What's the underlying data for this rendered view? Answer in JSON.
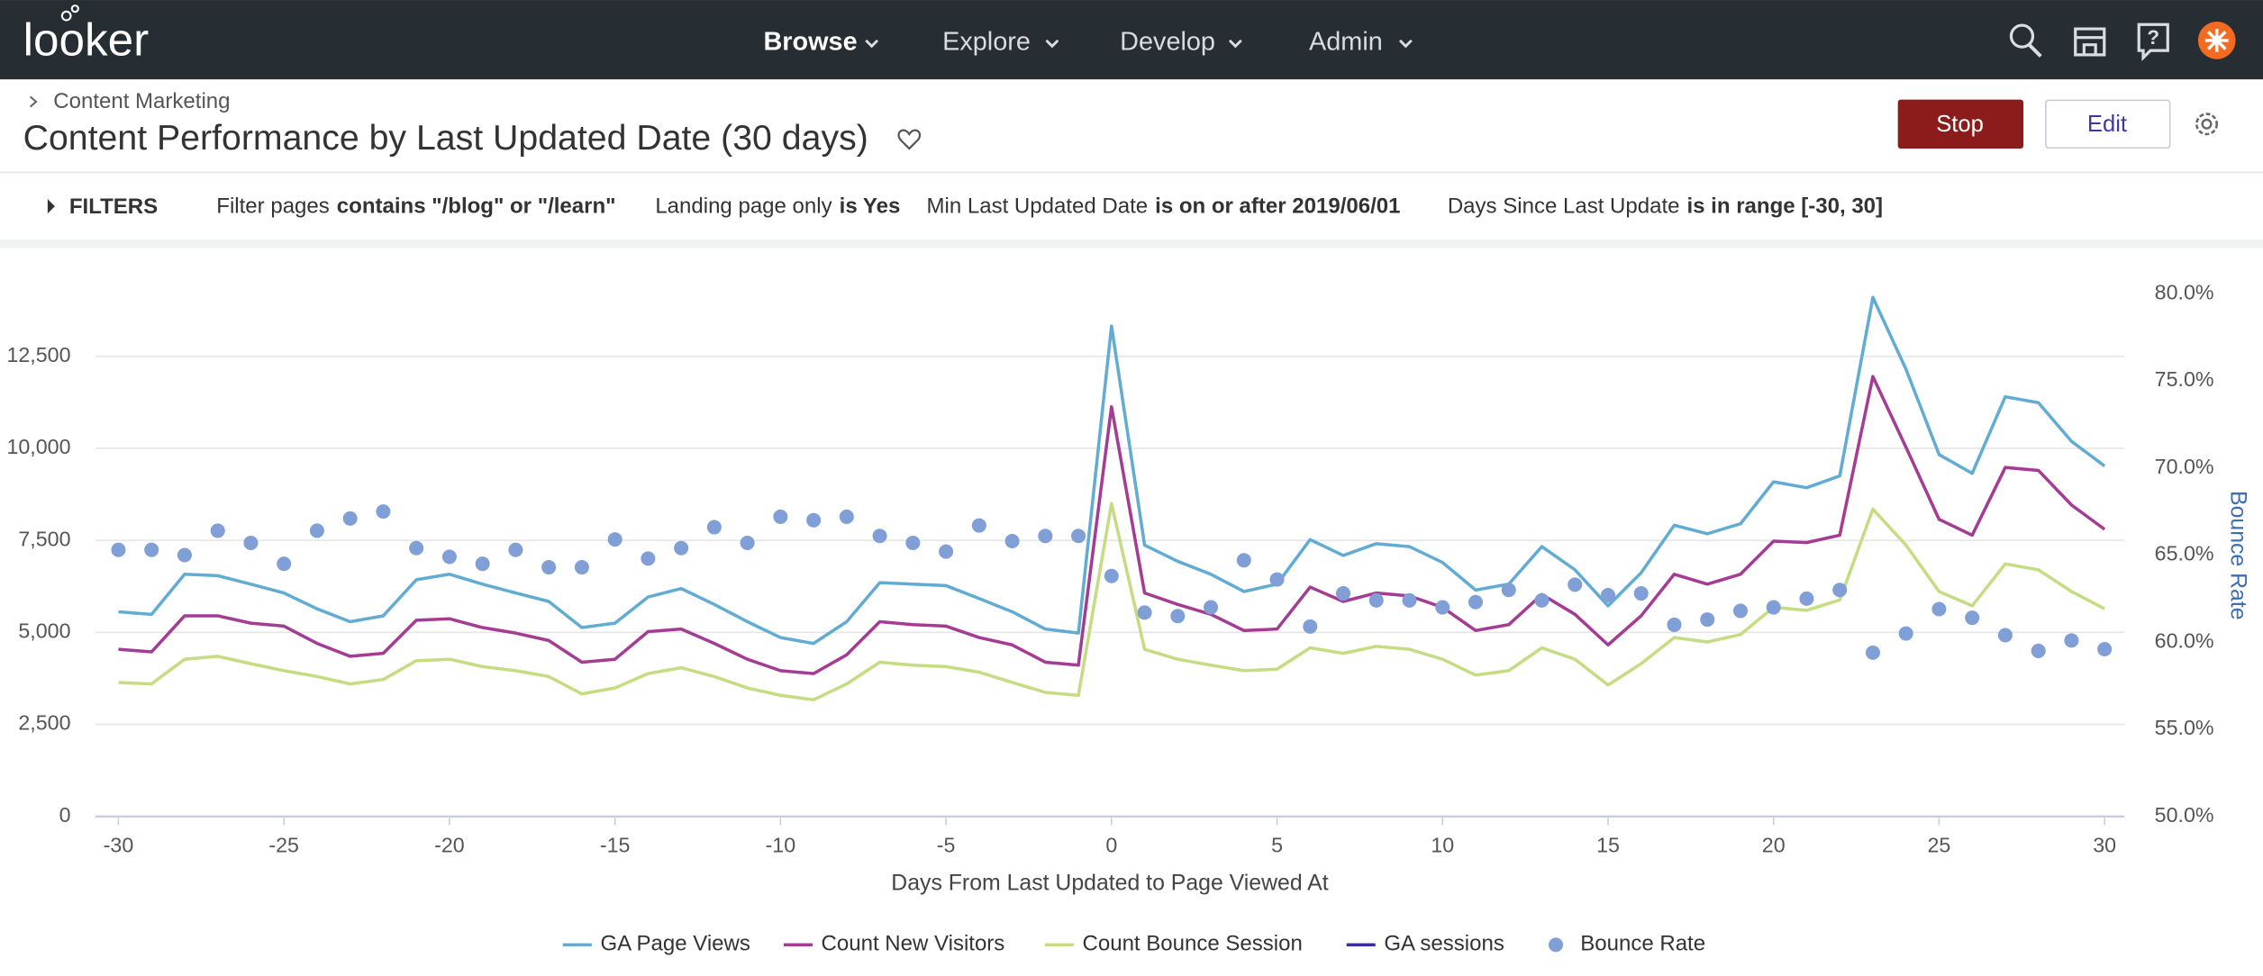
{
  "header": {
    "logo": "looker",
    "nav": [
      "Browse",
      "Explore",
      "Develop",
      "Admin"
    ]
  },
  "breadcrumb": "Content Marketing",
  "title": "Content Performance by Last Updated Date (30 days)",
  "buttons": {
    "stop": "Stop",
    "edit": "Edit"
  },
  "filters": {
    "label": "FILTERS",
    "items": [
      {
        "field": "Filter pages",
        "condition": "contains \"/blog\" or \"/learn\""
      },
      {
        "field": "Landing page only",
        "condition": "is Yes"
      },
      {
        "field": "Min Last Updated Date",
        "condition": "is on or after 2019/06/01"
      },
      {
        "field": "Days Since Last Update",
        "condition": "is in range [-30, 30]"
      }
    ]
  },
  "chart_data": {
    "type": "line",
    "x_label": "Days From Last Updated to Page Viewed At",
    "y2_label": "Bounce Rate",
    "x": [
      -30,
      -29,
      -28,
      -27,
      -26,
      -25,
      -24,
      -23,
      -22,
      -21,
      -20,
      -19,
      -18,
      -17,
      -16,
      -15,
      -14,
      -13,
      -12,
      -11,
      -10,
      -9,
      -8,
      -7,
      -6,
      -5,
      -4,
      -3,
      -2,
      -1,
      0,
      1,
      2,
      3,
      4,
      5,
      6,
      7,
      8,
      9,
      10,
      11,
      12,
      13,
      14,
      15,
      16,
      17,
      18,
      19,
      20,
      21,
      22,
      23,
      24,
      25,
      26,
      27,
      28,
      29,
      30
    ],
    "xlim": [
      -30.7,
      30.6
    ],
    "xticks": [
      -30,
      -25,
      -20,
      -15,
      -10,
      -5,
      0,
      5,
      10,
      15,
      20,
      25,
      30
    ],
    "ylim": [
      0,
      14200
    ],
    "yticks": [
      0,
      {
        "value": 2500,
        "label": "2,500"
      },
      {
        "value": 5000,
        "label": "5,000"
      },
      {
        "value": 7500,
        "label": "7,500"
      },
      {
        "value": 10000,
        "label": "10,000"
      },
      {
        "value": 12500,
        "label": "12,500"
      }
    ],
    "y2lim": [
      50,
      80
    ],
    "y2ticks": [
      {
        "value": 50,
        "label": "50.0%"
      },
      {
        "value": 55,
        "label": "55.0%"
      },
      {
        "value": 60,
        "label": "60.0%"
      },
      {
        "value": 65,
        "label": "65.0%"
      },
      {
        "value": 70,
        "label": "70.0%"
      },
      {
        "value": 75,
        "label": "75.0%"
      },
      {
        "value": 80,
        "label": "80.0%"
      }
    ],
    "grid": true,
    "legend": "bottom",
    "series": [
      {
        "name": "GA Page Views",
        "color": "#62acd3",
        "values": [
          5560,
          5490,
          6580,
          6540,
          6310,
          6070,
          5640,
          5290,
          5450,
          6430,
          6580,
          6310,
          6070,
          5840,
          5130,
          5250,
          5960,
          6190,
          5760,
          5290,
          4860,
          4700,
          5290,
          6350,
          6310,
          6270,
          5920,
          5560,
          5090,
          4980,
          13320,
          7370,
          6930,
          6580,
          6110,
          6310,
          7520,
          7090,
          7410,
          7330,
          6900,
          6150,
          6310,
          7330,
          6700,
          5720,
          6620,
          7910,
          7680,
          7950,
          9090,
          8930,
          9250,
          14100,
          12150,
          9830,
          9320,
          11400,
          11240,
          10190,
          9520
        ]
      },
      {
        "name": "Count New Visitors",
        "color": "#a43c93",
        "values": [
          4540,
          4470,
          5450,
          5450,
          5250,
          5170,
          4700,
          4350,
          4430,
          5330,
          5370,
          5130,
          4980,
          4780,
          4190,
          4270,
          5020,
          5090,
          4700,
          4270,
          3960,
          3880,
          4390,
          5290,
          5210,
          5170,
          4860,
          4660,
          4190,
          4110,
          11130,
          6070,
          5760,
          5490,
          5050,
          5090,
          6230,
          5840,
          6070,
          5990,
          5680,
          5050,
          5210,
          6030,
          5490,
          4660,
          5450,
          6580,
          6310,
          6580,
          7480,
          7440,
          7640,
          11950,
          10030,
          8070,
          7640,
          9480,
          9400,
          8460,
          7800
        ]
      },
      {
        "name": "Count Bounce Session",
        "color": "#c6dc82",
        "values": [
          3640,
          3600,
          4270,
          4350,
          4150,
          3960,
          3800,
          3600,
          3720,
          4230,
          4270,
          4070,
          3960,
          3800,
          3330,
          3490,
          3880,
          4040,
          3800,
          3490,
          3290,
          3170,
          3600,
          4190,
          4110,
          4070,
          3920,
          3640,
          3370,
          3290,
          8500,
          4540,
          4270,
          4110,
          3960,
          4000,
          4580,
          4430,
          4620,
          4540,
          4270,
          3840,
          3960,
          4580,
          4270,
          3570,
          4150,
          4860,
          4740,
          4940,
          5680,
          5600,
          5880,
          8350,
          7370,
          6110,
          5720,
          6860,
          6700,
          6110,
          5640
        ]
      },
      {
        "name": "GA sessions",
        "color": "#3a2d9e",
        "values": [
          null,
          null,
          null,
          null,
          null,
          null,
          null,
          null,
          null,
          null,
          null,
          null,
          null,
          null,
          null,
          null,
          null,
          null,
          null,
          null,
          null,
          null,
          null,
          null,
          null,
          null,
          null,
          null,
          null,
          null,
          null,
          null,
          null,
          null,
          null,
          null,
          null,
          null,
          null,
          null,
          null,
          null,
          null,
          null,
          null,
          null,
          null,
          null,
          null,
          null,
          null,
          null,
          null,
          null,
          null,
          null,
          null,
          null,
          null,
          null,
          null
        ]
      },
      {
        "name": "Bounce Rate",
        "color": "#7f9fd6",
        "type": "scatter",
        "axis": "y2",
        "values": [
          65.3,
          65.3,
          65.0,
          66.4,
          65.7,
          64.5,
          66.4,
          67.1,
          67.5,
          65.4,
          64.9,
          64.5,
          65.3,
          64.3,
          64.3,
          65.9,
          64.8,
          65.4,
          66.6,
          65.7,
          67.2,
          67.0,
          67.2,
          66.1,
          65.7,
          65.2,
          66.7,
          65.8,
          66.1,
          66.1,
          63.8,
          61.7,
          61.5,
          62.0,
          64.7,
          63.6,
          60.9,
          62.8,
          62.4,
          62.4,
          62.0,
          62.3,
          63.0,
          62.4,
          63.3,
          62.7,
          62.8,
          61.0,
          61.3,
          61.8,
          62.0,
          62.5,
          63.0,
          59.4,
          60.5,
          61.9,
          61.4,
          60.4,
          59.5,
          60.1,
          59.6
        ]
      }
    ]
  }
}
